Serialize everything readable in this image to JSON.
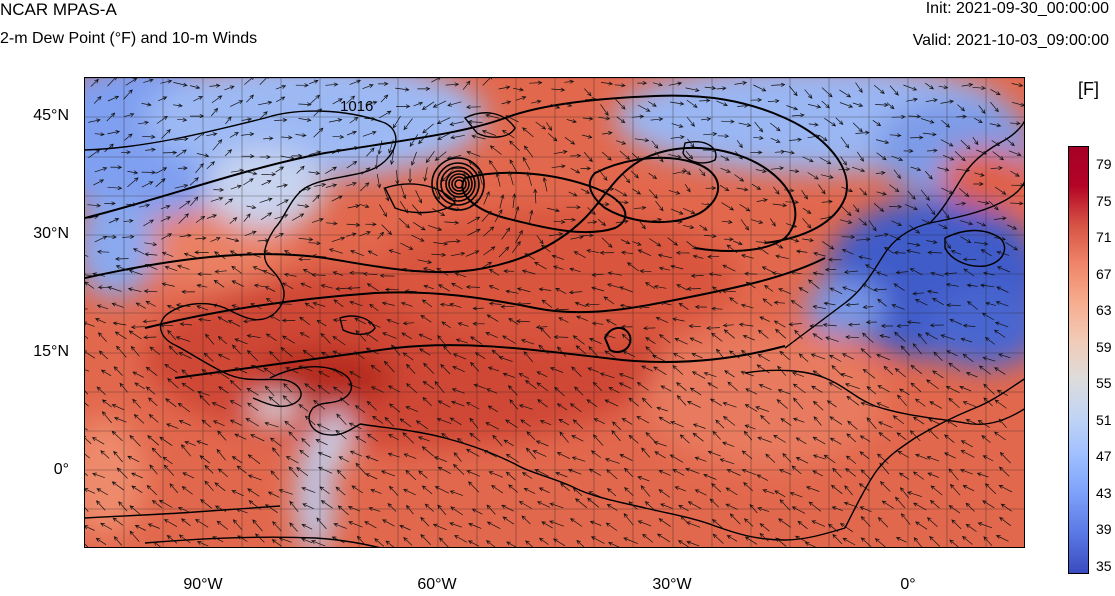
{
  "header": {
    "model": "NCAR MPAS-A",
    "field": "2-m Dew Point (°F) and 10-m Winds",
    "init": "Init: 2021-09-30_00:00:00",
    "valid": "Valid: 2021-10-03_09:00:00"
  },
  "axes": {
    "lat_labels": [
      "45°N",
      "30°N",
      "15°N",
      "0°"
    ],
    "lon_labels": [
      "90°W",
      "60°W",
      "30°W",
      "0°"
    ]
  },
  "colorbar": {
    "unit": "[F]",
    "ticks": [
      "79",
      "75",
      "71",
      "67",
      "63",
      "59",
      "55",
      "51",
      "47",
      "43",
      "39",
      "35"
    ],
    "colors": [
      "#3a4cc0",
      "#5977e3",
      "#7b9ff9",
      "#9ebeff",
      "#c0d4f5",
      "#dddcdc",
      "#f2cbb7",
      "#f7ac8e",
      "#ee8468",
      "#d65244",
      "#b40426",
      "#a50026"
    ]
  },
  "map": {
    "contour_label": "1016",
    "colors": {
      "warm": "#e0654a",
      "warm_dark": "#c8412f",
      "mild": "#f08a6c",
      "cool": "#8fb0f2",
      "cold": "#4766d2",
      "pale": "#d8dce6"
    }
  }
}
